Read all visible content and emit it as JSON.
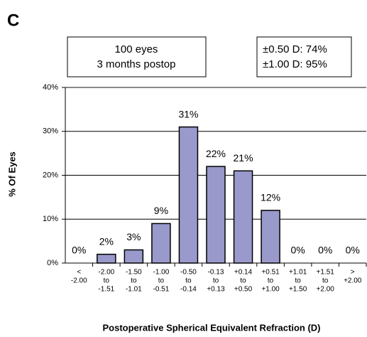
{
  "chart_data": {
    "type": "bar",
    "panel_label": "C",
    "annotations": [
      [
        "100 eyes",
        "3 months postop"
      ],
      [
        "±0.50 D: 74%",
        "±1.00 D: 95%"
      ]
    ],
    "ylabel": "% Of Eyes",
    "xlabel": "Postoperative Spherical Equivalent Refraction (D)",
    "categories": [
      [
        "<",
        "-2.00"
      ],
      [
        "-2.00",
        "to",
        "-1.51"
      ],
      [
        "-1.50",
        "to",
        "-1.01"
      ],
      [
        "-1.00",
        "to",
        "-0.51"
      ],
      [
        "-0.50",
        "to",
        "-0.14"
      ],
      [
        "-0.13",
        "to",
        "+0.13"
      ],
      [
        "+0.14",
        "to",
        "+0.50"
      ],
      [
        "+0.51",
        "to",
        "+1.00"
      ],
      [
        "+1.01",
        "to",
        "+1.50"
      ],
      [
        "+1.51",
        "to",
        "+2.00"
      ],
      [
        ">",
        "+2.00"
      ]
    ],
    "values": [
      0,
      2,
      3,
      9,
      31,
      22,
      21,
      12,
      0,
      0,
      0
    ],
    "value_labels": [
      "0%",
      "2%",
      "3%",
      "9%",
      "31%",
      "22%",
      "21%",
      "12%",
      "0%",
      "0%",
      "0%"
    ],
    "color": "#9999cc",
    "ylim": [
      0,
      40
    ],
    "yticks": [
      {
        "value": 0,
        "label": "0%"
      },
      {
        "value": 10,
        "label": "10%"
      },
      {
        "value": 20,
        "label": "20%"
      },
      {
        "value": 30,
        "label": "30%"
      },
      {
        "value": 40,
        "label": "40%"
      }
    ],
    "grid": true
  }
}
